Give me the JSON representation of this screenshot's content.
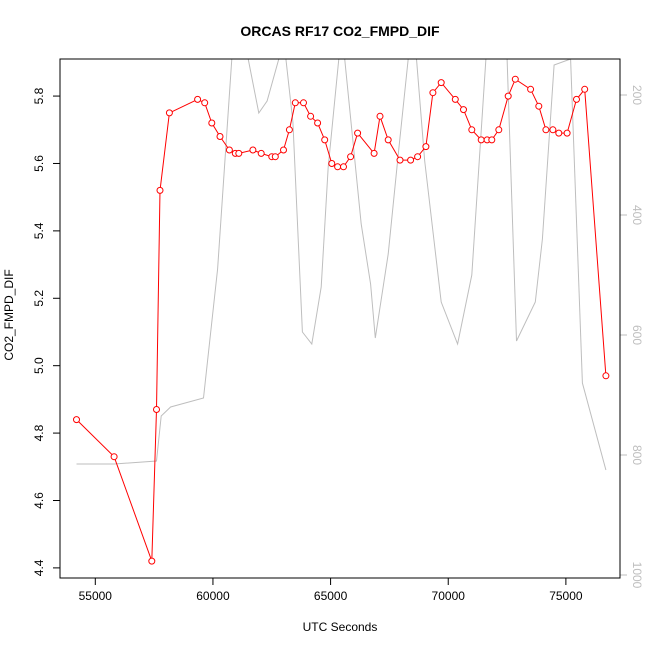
{
  "chart_data": {
    "type": "line",
    "title": "ORCAS RF17 CO2_FMPD_DIF",
    "xlabel": "UTC Seconds",
    "ylabel": "CO2_FMPD_DIF",
    "xlim": [
      53500,
      77300
    ],
    "ylim": [
      4.37,
      5.91
    ],
    "y2lim": [
      1005,
      140
    ],
    "y2_reversed": true,
    "x_ticks": [
      55000,
      60000,
      65000,
      70000,
      75000
    ],
    "x_tick_labels": [
      "55000",
      "60000",
      "65000",
      "70000",
      "75000"
    ],
    "y_ticks": [
      4.4,
      4.6,
      4.8,
      5.0,
      5.2,
      5.4,
      5.6,
      5.8
    ],
    "y_tick_labels": [
      "4.4",
      "4.6",
      "4.8",
      "5.0",
      "5.2",
      "5.4",
      "5.6",
      "5.8"
    ],
    "y2_ticks": [
      200,
      400,
      600,
      800,
      1000
    ],
    "y2_tick_labels": [
      "200",
      "400",
      "600",
      "800",
      "1000"
    ],
    "grid": false,
    "series": [
      {
        "color": "#ff0000",
        "marker": "circle-open",
        "x": [
          54200,
          55800,
          57400,
          57600,
          57750,
          58150,
          59350,
          59650,
          59950,
          60300,
          60700,
          60950,
          61100,
          61700,
          62050,
          62500,
          62650,
          63000,
          63250,
          63500,
          63850,
          64150,
          64450,
          64750,
          65050,
          65300,
          65550,
          65850,
          66150,
          66850,
          67100,
          67450,
          67950,
          68400,
          68700,
          69050,
          69350,
          69700,
          70300,
          70650,
          71000,
          71400,
          71650,
          71850,
          72150,
          72550,
          72850,
          73500,
          73850,
          74150,
          74450,
          74700,
          75050,
          75450,
          75800,
          76700
        ],
        "y": [
          4.84,
          4.73,
          4.42,
          4.87,
          5.52,
          5.75,
          5.79,
          5.78,
          5.72,
          5.68,
          5.64,
          5.63,
          5.63,
          5.64,
          5.63,
          5.62,
          5.62,
          5.64,
          5.7,
          5.78,
          5.78,
          5.74,
          5.72,
          5.67,
          5.6,
          5.59,
          5.59,
          5.62,
          5.69,
          5.63,
          5.74,
          5.67,
          5.61,
          5.61,
          5.62,
          5.65,
          5.81,
          5.84,
          5.79,
          5.76,
          5.7,
          5.67,
          5.67,
          5.67,
          5.7,
          5.8,
          5.85,
          5.82,
          5.77,
          5.7,
          5.7,
          5.69,
          5.69,
          5.79,
          5.82,
          4.97
        ]
      },
      {
        "color": "#bebebe",
        "marker": "none",
        "axis": "right",
        "x": [
          54200,
          55800,
          57600,
          57800,
          58200,
          59600,
          60200,
          60800,
          61500,
          61950,
          62300,
          62800,
          63100,
          63400,
          63800,
          64200,
          64600,
          64900,
          65350,
          65600,
          66300,
          66700,
          66900,
          67450,
          67900,
          68300,
          68650,
          69000,
          69700,
          70400,
          71000,
          71600,
          72500,
          72900,
          73700,
          74000,
          74500,
          75200,
          75700,
          76700
        ],
        "y": [
          815,
          815,
          810,
          735,
          720,
          705,
          490,
          140,
          140,
          230,
          210,
          140,
          140,
          245,
          595,
          615,
          520,
          320,
          140,
          140,
          415,
          515,
          605,
          465,
          290,
          140,
          140,
          310,
          545,
          615,
          500,
          140,
          140,
          610,
          545,
          440,
          150,
          140,
          680,
          825
        ]
      }
    ]
  }
}
